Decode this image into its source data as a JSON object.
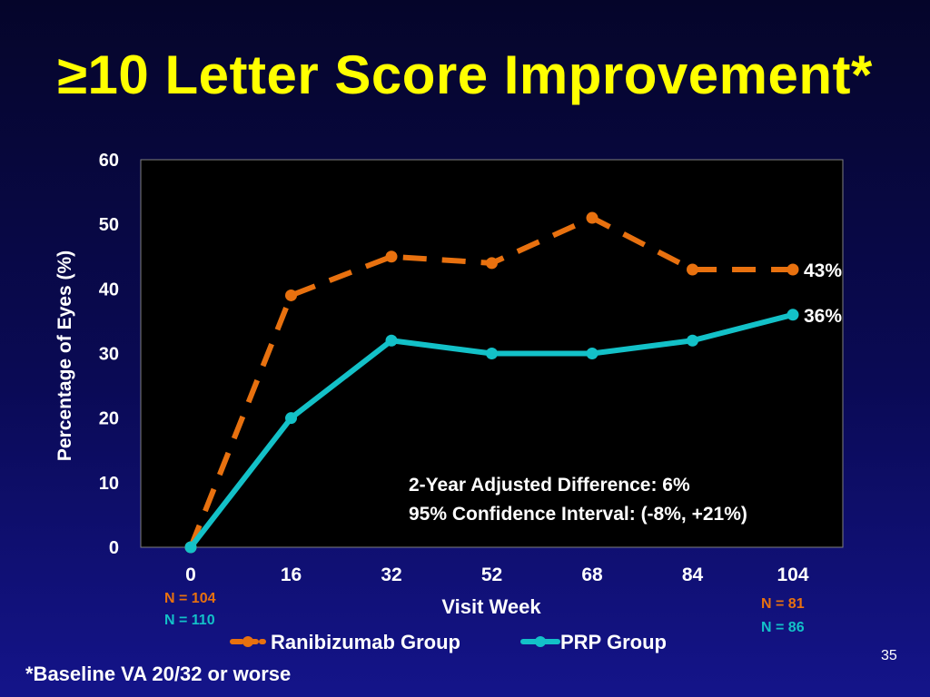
{
  "slide": {
    "title": "≥10 Letter Score Improvement*",
    "footnote": "*Baseline VA 20/32 or worse",
    "number": "35"
  },
  "colors": {
    "ranibizumab": "#e8710f",
    "prp": "#13c1c8",
    "title": "#ffff00"
  },
  "chart_data": {
    "type": "line",
    "title": "",
    "xlabel": "Visit Week",
    "ylabel": "Percentage of Eyes (%)",
    "ylim": [
      0,
      60
    ],
    "yticks": [
      "0",
      "10",
      "20",
      "30",
      "40",
      "50",
      "60"
    ],
    "categories": [
      "0",
      "16",
      "32",
      "52",
      "68",
      "84",
      "104"
    ],
    "series": [
      {
        "name": "Ranibizumab Group",
        "style": "dashed",
        "values": [
          0,
          39,
          45,
          44,
          51,
          43,
          43
        ],
        "end_label": "43%"
      },
      {
        "name": "PRP Group",
        "style": "solid",
        "values": [
          0,
          20,
          32,
          30,
          30,
          32,
          36
        ],
        "end_label": "36%"
      }
    ],
    "annotations": {
      "difference": "2-Year Adjusted Difference: 6%",
      "confidence_interval": "95% Confidence Interval: (-8%, +21%)"
    },
    "sample_sizes": {
      "start": {
        "ranibizumab": "N = 104",
        "prp": "N = 110"
      },
      "end": {
        "ranibizumab": "N = 81",
        "prp": "N = 86"
      }
    },
    "legend_position": "bottom"
  }
}
